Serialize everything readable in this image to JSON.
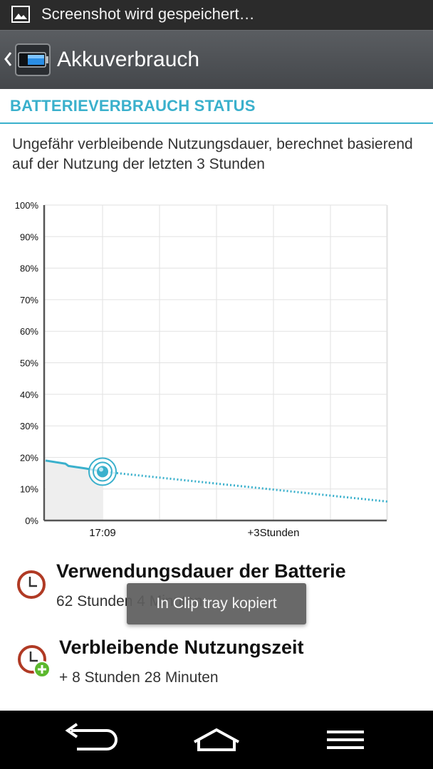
{
  "status_bar": {
    "notification_text": "Screenshot wird gespeichert…",
    "icon": "image-icon"
  },
  "action_bar": {
    "back_icon": "chevron-left-icon",
    "app_icon": "battery-icon",
    "title": "Akkuverbrauch"
  },
  "section": {
    "title": "BATTERIEVERBRAUCH STATUS",
    "description": "Ungefähr verbleibende Nutzungsdauer, berechnet basierend auf der Nutzung der letzten 3 Stunden"
  },
  "chart_data": {
    "type": "line",
    "title": "",
    "xlabel": "",
    "ylabel": "",
    "y_ticks": [
      "100%",
      "90%",
      "80%",
      "70%",
      "60%",
      "50%",
      "40%",
      "30%",
      "20%",
      "10%",
      "0%"
    ],
    "x_ticks": [
      "17:09",
      "+3Stunden"
    ],
    "ylim": [
      0,
      100
    ],
    "grid": true,
    "series": [
      {
        "style": "solid",
        "color": "#3ab0cc",
        "x_hours": [
          -1.0,
          -0.65,
          -0.6,
          -0.3,
          0.0
        ],
        "y": [
          19,
          18,
          17.3,
          16.5,
          15.5
        ]
      },
      {
        "style": "dotted",
        "color": "#3ab0cc",
        "x_hours": [
          0.0,
          5.0
        ],
        "y": [
          15.5,
          6
        ]
      }
    ],
    "current_point": {
      "x_hours": 0.0,
      "y": 15.5
    }
  },
  "info": [
    {
      "icon": "clock-icon",
      "title": "Verwendungsdauer der Batterie",
      "value": "62 Stunden 4 Minuten"
    },
    {
      "icon": "clock-plus-icon",
      "title": "Verbleibende Nutzungszeit",
      "value": "+ 8 Stunden 28 Minuten"
    }
  ],
  "toast": {
    "text": "In Clip tray kopiert"
  },
  "nav_bar": {
    "back": "back-icon",
    "home": "home-icon",
    "menu": "menu-icon"
  },
  "colors": {
    "accent": "#3ab0cc",
    "status_bar": "#2b2b2b",
    "action_bar": "#505357",
    "clock": "#b03a24",
    "plus_badge": "#5cb82e"
  }
}
